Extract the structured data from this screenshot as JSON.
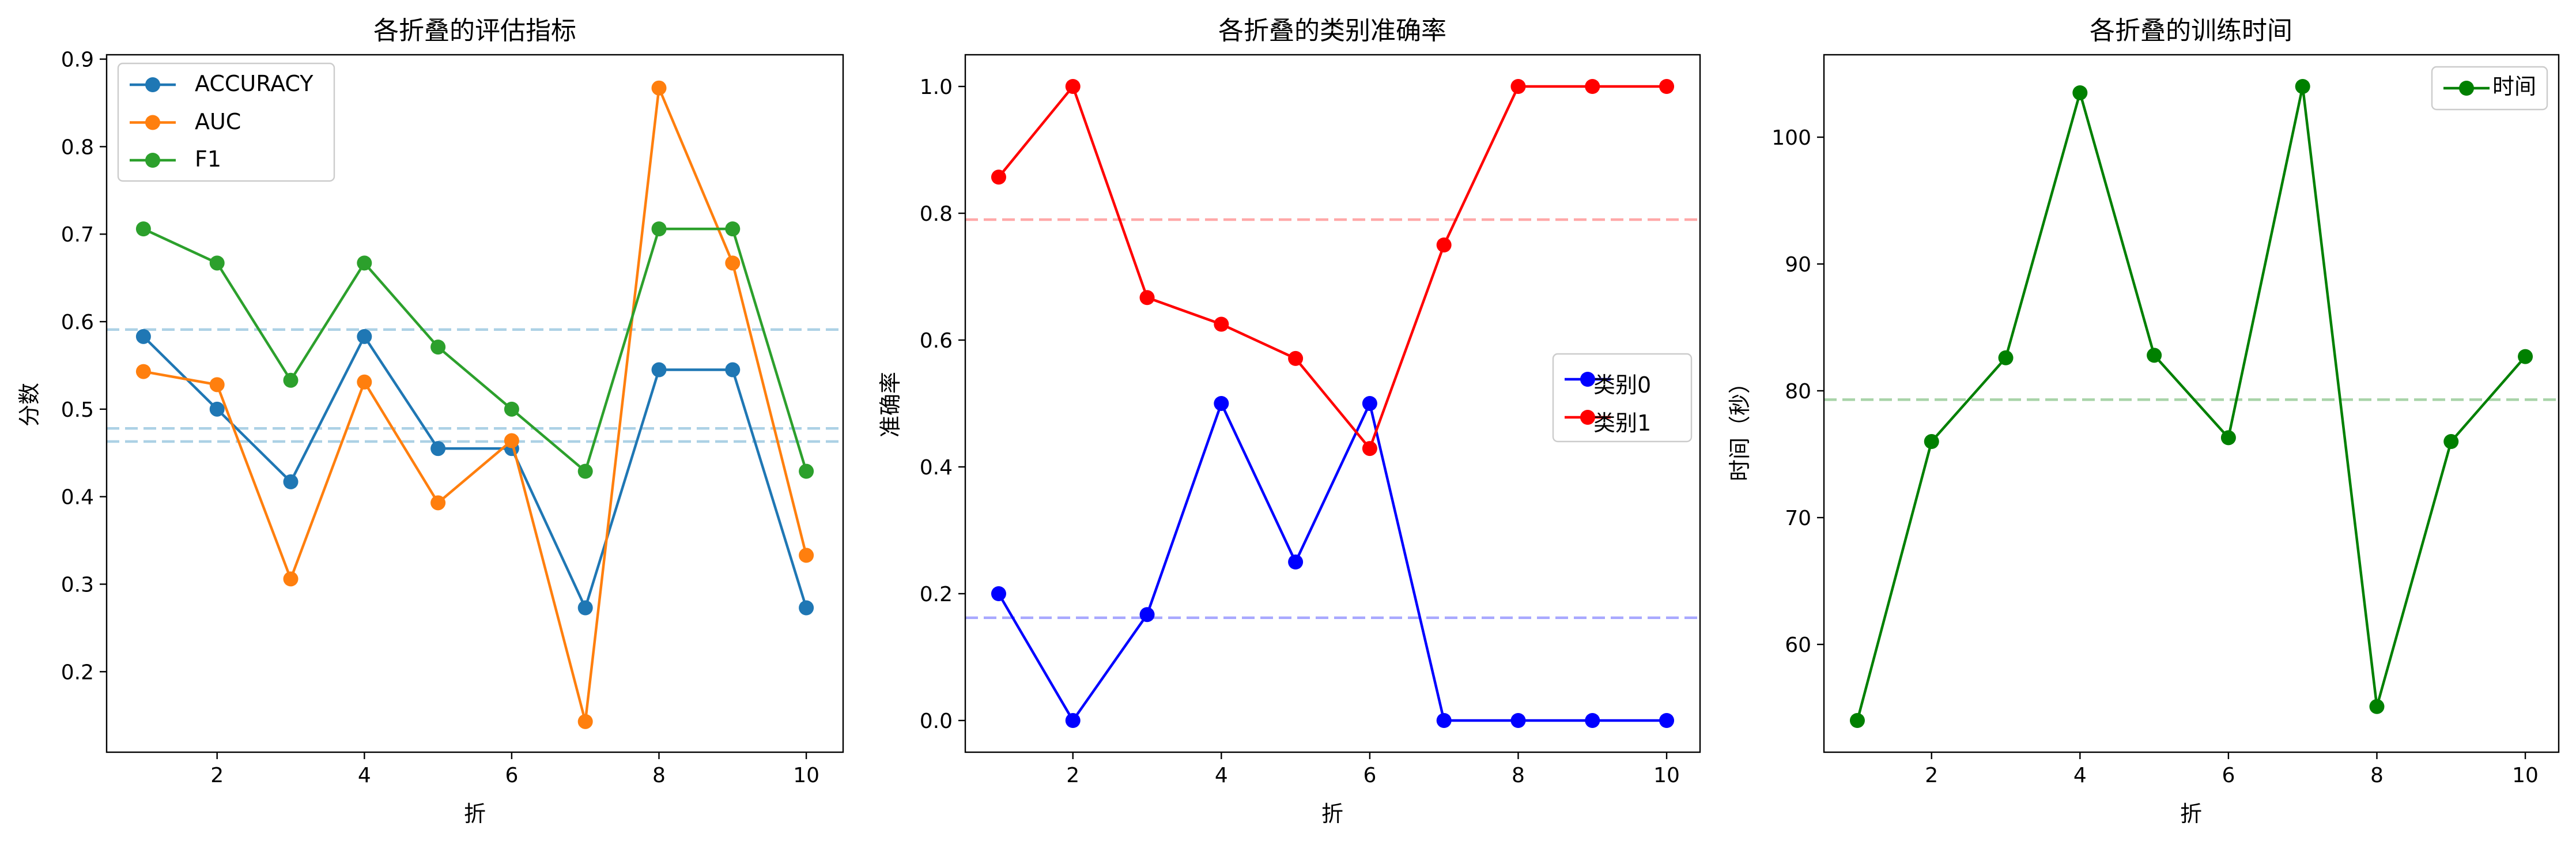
{
  "chart_data": [
    {
      "type": "line",
      "title": "各折叠的评估指标",
      "xlabel": "折",
      "ylabel": "分数",
      "x": [
        1,
        2,
        3,
        4,
        5,
        6,
        7,
        8,
        9,
        10
      ],
      "xlim": [
        0.5,
        10.5
      ],
      "ylim": [
        0.108,
        0.905
      ],
      "xticks": [
        "2",
        "4",
        "6",
        "8",
        "10"
      ],
      "yticks": [
        "0.2",
        "0.3",
        "0.4",
        "0.5",
        "0.6",
        "0.7",
        "0.8",
        "0.9"
      ],
      "legend_position": "upper-left",
      "series": [
        {
          "name": "ACCURACY",
          "color": "#1f77b4",
          "values": [
            0.583,
            0.5,
            0.417,
            0.583,
            0.455,
            0.455,
            0.273,
            0.545,
            0.545,
            0.273
          ]
        },
        {
          "name": "AUC",
          "color": "#ff7f0e",
          "values": [
            0.543,
            0.528,
            0.306,
            0.531,
            0.393,
            0.464,
            0.143,
            0.867,
            0.667,
            0.333
          ]
        },
        {
          "name": "F1",
          "color": "#2ca02c",
          "values": [
            0.706,
            0.667,
            0.533,
            0.667,
            0.571,
            0.5,
            0.429,
            0.706,
            0.706,
            0.429
          ]
        }
      ],
      "reference_lines": [
        {
          "value": 0.591,
          "color": "#9ecae1"
        },
        {
          "value": 0.478,
          "color": "#9ecae1"
        },
        {
          "value": 0.463,
          "color": "#9ecae1"
        }
      ]
    },
    {
      "type": "line",
      "title": "各折叠的类别准确率",
      "xlabel": "折",
      "ylabel": "准确率",
      "x": [
        1,
        2,
        3,
        4,
        5,
        6,
        7,
        8,
        9,
        10
      ],
      "xlim": [
        0.55,
        10.45
      ],
      "ylim": [
        -0.05,
        1.05
      ],
      "xticks": [
        "2",
        "4",
        "6",
        "8",
        "10"
      ],
      "yticks": [
        "0.0",
        "0.2",
        "0.4",
        "0.6",
        "0.8",
        "1.0"
      ],
      "legend_position": "center-right",
      "series": [
        {
          "name": "类别0",
          "color": "#0000ff",
          "values": [
            0.2,
            0.0,
            0.167,
            0.5,
            0.25,
            0.5,
            0.0,
            0.0,
            0.0,
            0.0
          ]
        },
        {
          "name": "类别1",
          "color": "#ff0000",
          "values": [
            0.857,
            1.0,
            0.667,
            0.625,
            0.571,
            0.429,
            0.75,
            1.0,
            1.0,
            1.0
          ]
        }
      ],
      "reference_lines": [
        {
          "value": 0.79,
          "color": "#ff9999"
        },
        {
          "value": 0.162,
          "color": "#9999ff"
        }
      ]
    },
    {
      "type": "line",
      "title": "各折叠的训练时间",
      "xlabel": "折",
      "ylabel": "时间（秒）",
      "x": [
        1,
        2,
        3,
        4,
        5,
        6,
        7,
        8,
        9,
        10
      ],
      "xlim": [
        0.55,
        10.45
      ],
      "ylim": [
        51.5,
        106.5
      ],
      "xticks": [
        "2",
        "4",
        "6",
        "8",
        "10"
      ],
      "yticks": [
        "60",
        "70",
        "80",
        "90",
        "100"
      ],
      "legend_position": "upper-right",
      "series": [
        {
          "name": "时间",
          "color": "#008000",
          "values": [
            54.0,
            76.0,
            82.6,
            103.5,
            82.8,
            76.3,
            104.0,
            55.1,
            76.0,
            82.7
          ]
        }
      ],
      "reference_lines": [
        {
          "value": 79.3,
          "color": "#99cc99"
        }
      ]
    }
  ]
}
